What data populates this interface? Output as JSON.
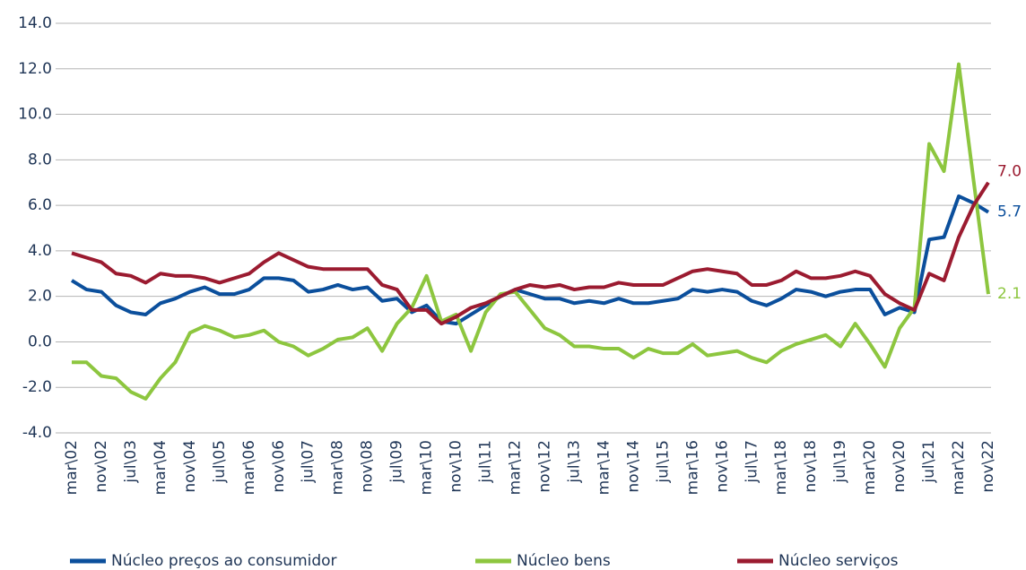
{
  "chart_data": {
    "type": "line",
    "categories": [
      "mar\\02",
      null,
      "nov\\02",
      null,
      "jul\\03",
      null,
      "mar\\04",
      null,
      "nov\\04",
      null,
      "jul\\05",
      null,
      "mar\\06",
      null,
      "nov\\06",
      null,
      "jul\\07",
      null,
      "mar\\08",
      null,
      "nov\\08",
      null,
      "jul\\09",
      null,
      "mar\\10",
      null,
      "nov\\10",
      null,
      "jul\\11",
      null,
      "mar\\12",
      null,
      "nov\\12",
      null,
      "jul\\13",
      null,
      "mar\\14",
      null,
      "nov\\14",
      null,
      "jul\\15",
      null,
      "mar\\16",
      null,
      "nov\\16",
      null,
      "jul\\17",
      null,
      "mar\\18",
      null,
      "nov\\18",
      null,
      "jul\\19",
      null,
      "mar\\20",
      null,
      "nov\\20",
      null,
      "jul\\21",
      null,
      "mar\\22",
      null,
      "nov\\22"
    ],
    "series": [
      {
        "name": "Núcleo preços ao consumidor",
        "color": "#0b4f9c",
        "values": [
          2.7,
          2.3,
          2.2,
          1.6,
          1.3,
          1.2,
          1.7,
          1.9,
          2.2,
          2.4,
          2.1,
          2.1,
          2.3,
          2.8,
          2.8,
          2.7,
          2.2,
          2.3,
          2.5,
          2.3,
          2.4,
          1.8,
          1.9,
          1.3,
          1.6,
          0.9,
          0.8,
          1.2,
          1.6,
          2.0,
          2.3,
          2.1,
          1.9,
          1.9,
          1.7,
          1.8,
          1.7,
          1.9,
          1.7,
          1.7,
          1.8,
          1.9,
          2.3,
          2.2,
          2.3,
          2.2,
          1.8,
          1.6,
          1.9,
          2.3,
          2.2,
          2.0,
          2.2,
          2.3,
          2.3,
          1.2,
          1.5,
          1.3,
          4.5,
          4.6,
          6.4,
          6.1,
          5.7
        ],
        "value_labels": [
          null,
          null,
          null,
          null,
          null,
          null,
          null,
          null,
          null,
          null,
          null,
          null,
          null,
          null,
          null,
          null,
          null,
          null,
          null,
          null,
          null,
          null,
          null,
          null,
          null,
          null,
          null,
          null,
          null,
          null,
          null,
          null,
          null,
          null,
          null,
          null,
          null,
          null,
          null,
          null,
          null,
          null,
          null,
          null,
          null,
          null,
          null,
          null,
          null,
          null,
          null,
          null,
          null,
          null,
          null,
          null,
          null,
          null,
          null,
          null,
          null,
          null,
          "5.7"
        ]
      },
      {
        "name": "Núcleo bens",
        "color": "#8dc63f",
        "values": [
          -0.9,
          -0.9,
          -1.5,
          -1.6,
          -2.2,
          -2.5,
          -1.6,
          -0.9,
          0.4,
          0.7,
          0.5,
          0.2,
          0.3,
          0.5,
          0.0,
          -0.2,
          -0.6,
          -0.3,
          0.1,
          0.2,
          0.6,
          -0.4,
          0.8,
          1.5,
          2.9,
          0.9,
          1.2,
          -0.4,
          1.3,
          2.1,
          2.2,
          1.4,
          0.6,
          0.3,
          -0.2,
          -0.2,
          -0.3,
          -0.3,
          -0.7,
          -0.3,
          -0.5,
          -0.5,
          -0.1,
          -0.6,
          -0.5,
          -0.4,
          -0.7,
          -0.9,
          -0.4,
          -0.1,
          0.1,
          0.3,
          -0.2,
          0.8,
          -0.1,
          -1.1,
          0.6,
          1.5,
          8.7,
          7.5,
          12.2,
          7.1,
          2.1
        ],
        "value_labels": [
          null,
          null,
          null,
          null,
          null,
          null,
          null,
          null,
          null,
          null,
          null,
          null,
          null,
          null,
          null,
          null,
          null,
          null,
          null,
          null,
          null,
          null,
          null,
          null,
          null,
          null,
          null,
          null,
          null,
          null,
          null,
          null,
          null,
          null,
          null,
          null,
          null,
          null,
          null,
          null,
          null,
          null,
          null,
          null,
          null,
          null,
          null,
          null,
          null,
          null,
          null,
          null,
          null,
          null,
          null,
          null,
          null,
          null,
          null,
          null,
          null,
          null,
          "2.1"
        ]
      },
      {
        "name": "Núcleo serviços",
        "color": "#9b1b30",
        "values": [
          3.9,
          3.7,
          3.5,
          3.0,
          2.9,
          2.6,
          3.0,
          2.9,
          2.9,
          2.8,
          2.6,
          2.8,
          3.0,
          3.5,
          3.9,
          3.6,
          3.3,
          3.2,
          3.2,
          3.2,
          3.2,
          2.5,
          2.3,
          1.4,
          1.4,
          0.8,
          1.1,
          1.5,
          1.7,
          2.0,
          2.3,
          2.5,
          2.4,
          2.5,
          2.3,
          2.4,
          2.4,
          2.6,
          2.5,
          2.5,
          2.5,
          2.8,
          3.1,
          3.2,
          3.1,
          3.0,
          2.5,
          2.5,
          2.7,
          3.1,
          2.8,
          2.8,
          2.9,
          3.1,
          2.9,
          2.1,
          1.7,
          1.4,
          3.0,
          2.7,
          4.6,
          6.0,
          7.0
        ],
        "value_labels": [
          null,
          null,
          null,
          null,
          null,
          null,
          null,
          null,
          null,
          null,
          null,
          null,
          null,
          null,
          null,
          null,
          null,
          null,
          null,
          null,
          null,
          null,
          null,
          null,
          null,
          null,
          null,
          null,
          null,
          null,
          null,
          null,
          null,
          null,
          null,
          null,
          null,
          null,
          null,
          null,
          null,
          null,
          null,
          null,
          null,
          null,
          null,
          null,
          null,
          null,
          null,
          null,
          null,
          null,
          null,
          null,
          null,
          null,
          null,
          null,
          null,
          null,
          "7.0"
        ]
      }
    ],
    "ylim": [
      -4,
      14
    ],
    "yticks": [
      {
        "value": -4,
        "label": "-4.0"
      },
      {
        "value": -2,
        "label": "-2.0"
      },
      {
        "value": 0,
        "label": "0.0"
      },
      {
        "value": 2,
        "label": "2.0"
      },
      {
        "value": 4,
        "label": "4.0"
      },
      {
        "value": 6,
        "label": "6.0"
      },
      {
        "value": 8,
        "label": "8.0"
      },
      {
        "value": 10,
        "label": "10.0"
      },
      {
        "value": 12,
        "label": "12.0"
      },
      {
        "value": 14,
        "label": "14.0"
      }
    ],
    "grid": true,
    "legend": "bottom"
  }
}
